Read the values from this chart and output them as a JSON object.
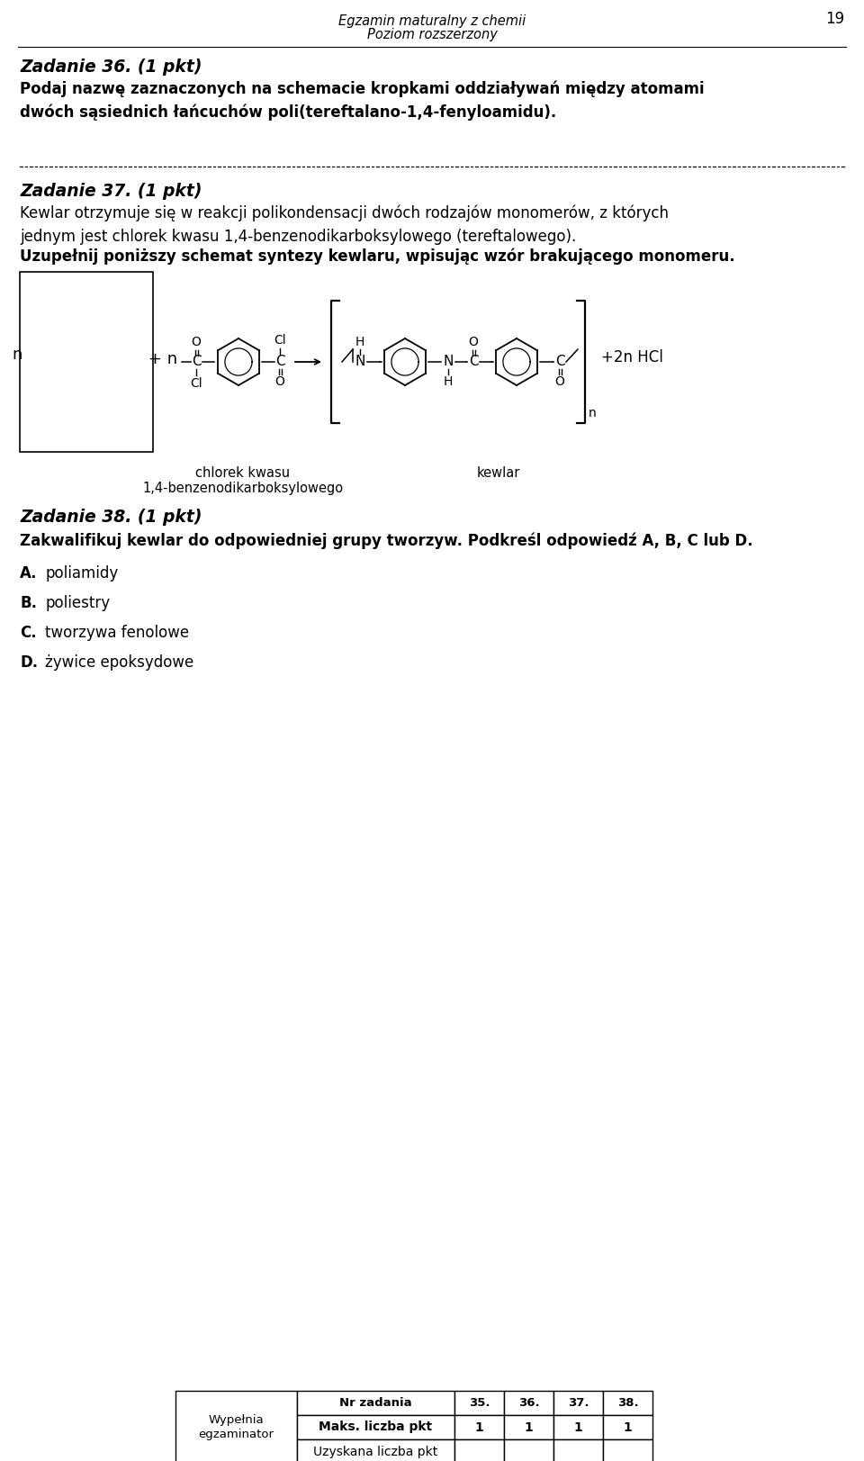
{
  "page_header_line1": "Egzamin maturalny z chemii",
  "page_header_line2": "Poziom rozszerzony",
  "page_number": "19",
  "bg_color": "#ffffff",
  "zadanie36_title": "Zadanie 36. (1 pkt)",
  "zadanie36_body": "Podaj nazwę zaznaczonych na schemacie kropkami oddziaływań między atomami\ndwóch sąsiednich łańcuchów poli(tereftalano-1,4-fenyloamidu).",
  "zadanie37_title": "Zadanie 37. (1 pkt)",
  "zadanie37_body1": "Kewlar otrzymuje się w reakcji polikondensacji dwóch rodzajów monomerów, z których\njednym jest chlorek kwasu 1,4-benzenodikarboksylowego (tereftalowego).",
  "zadanie37_body2": "Uzupełnij poniższy schemat syntezy kewlaru, wpisując wzór brakującego monomeru.",
  "zadanie38_title": "Zadanie 38. (1 pkt)",
  "zadanie38_body": "Zakwalifikuj kewlar do odpowiedniej grupy tworzyw. Podkreśl odpowiedź A, B, C lub D.",
  "answer_A": "poliamidy",
  "answer_B": "poliestry",
  "answer_C": "tworzywa fenolowe",
  "answer_D": "żywice epoksydowe",
  "label_chlorek": "chlorek kwasu\n1,4-benzenodikarboksylowego",
  "label_kewlar": "kewlar",
  "table_merged_label": "Wypełnia\negzaminator",
  "table_row1": [
    "Nr zadania",
    "35.",
    "36.",
    "37.",
    "38."
  ],
  "table_row2": [
    "Maks. liczba pkt",
    "1",
    "1",
    "1",
    "1"
  ],
  "table_row3": [
    "Uzyskana liczba pkt",
    "",
    "",
    "",
    ""
  ]
}
